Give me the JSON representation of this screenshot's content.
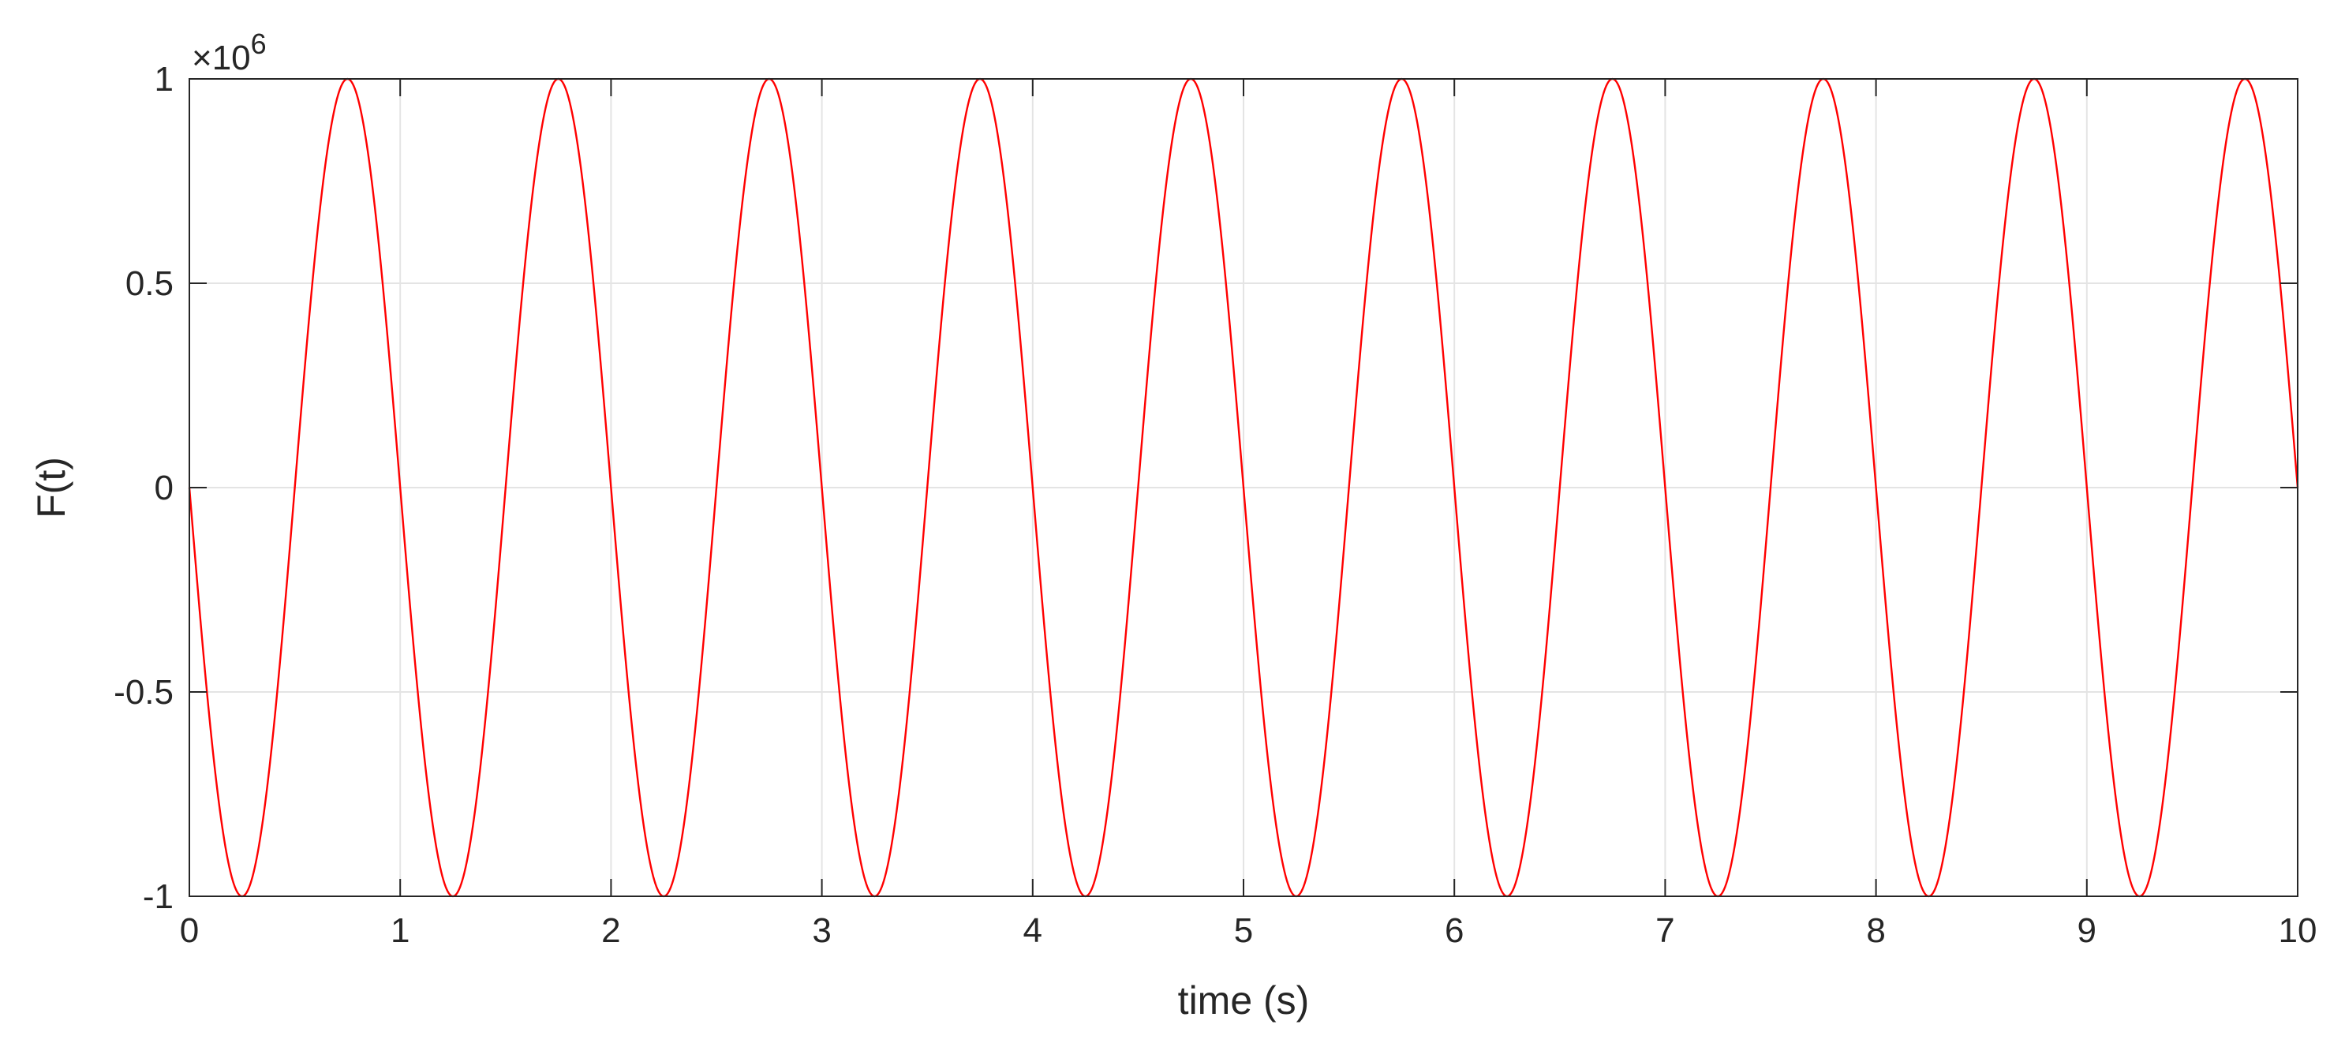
{
  "chart_data": {
    "type": "line",
    "title": "",
    "xlabel": "time (s)",
    "ylabel": "F(t)",
    "y_exponent_prefix": "×10",
    "y_exponent_power": "6",
    "y_multiplier": 1000000,
    "xlim": [
      0,
      10
    ],
    "ylim": [
      -1,
      1
    ],
    "x_ticks": [
      0,
      1,
      2,
      3,
      4,
      5,
      6,
      7,
      8,
      9,
      10
    ],
    "x_tick_labels": [
      "0",
      "1",
      "2",
      "3",
      "4",
      "5",
      "6",
      "7",
      "8",
      "9",
      "10"
    ],
    "y_ticks": [
      -1,
      -0.5,
      0,
      0.5,
      1
    ],
    "y_tick_labels": [
      "-1",
      "-0.5",
      "0",
      "0.5",
      "1"
    ],
    "grid": true,
    "legend": "none",
    "series": [
      {
        "color": "#ff0000",
        "function": "-sin(2*pi*t)",
        "amplitude": 1,
        "frequency_hz": 1,
        "x_range": [
          0,
          10
        ],
        "samples": 2001
      }
    ]
  }
}
